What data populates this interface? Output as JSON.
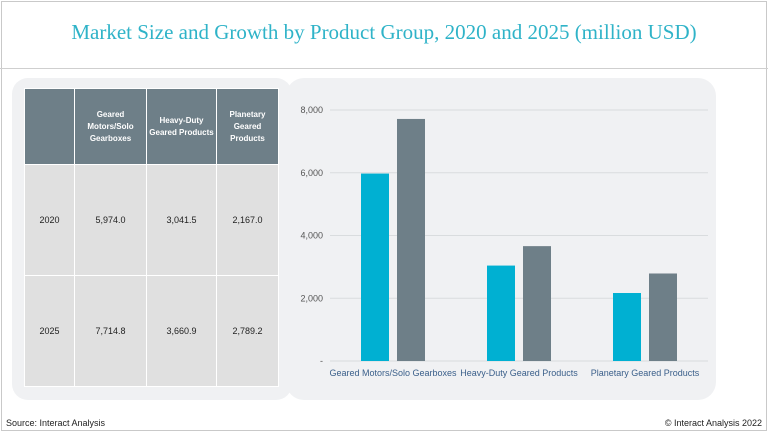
{
  "title": "Market Size and Growth by Product Group, 2020 and 2025 (million USD)",
  "table": {
    "headers": [
      "",
      "Geared Motors/Solo Gearboxes",
      "Heavy-Duty Geared Products",
      "Planetary Geared Products"
    ],
    "rows": [
      {
        "year": "2020",
        "cells": [
          "5,974.0",
          "3,041.5",
          "2,167.0"
        ]
      },
      {
        "year": "2025",
        "cells": [
          "7,714.8",
          "3,660.9",
          "2,789.2"
        ]
      }
    ]
  },
  "chart_data": {
    "type": "bar",
    "title": "Market Size and Growth by Product Group, 2020 and 2025 (million USD)",
    "categories": [
      "Geared Motors/Solo Gearboxes",
      "Heavy-Duty Geared Products",
      "Planetary Geared Products"
    ],
    "series": [
      {
        "name": "2020",
        "color": "#00b0d2",
        "values": [
          5974.0,
          3041.5,
          2167.0
        ]
      },
      {
        "name": "2025",
        "color": "#6e7f88",
        "values": [
          7714.8,
          3660.9,
          2789.2
        ]
      }
    ],
    "yticks": [
      "-",
      "2,000",
      "4,000",
      "6,000",
      "8,000"
    ],
    "ylim": [
      0,
      8000
    ],
    "grid": true,
    "xlabel": "",
    "ylabel": ""
  },
  "footer": {
    "source": "Source: Interact Analysis",
    "copyright": "© Interact Analysis 2022"
  }
}
